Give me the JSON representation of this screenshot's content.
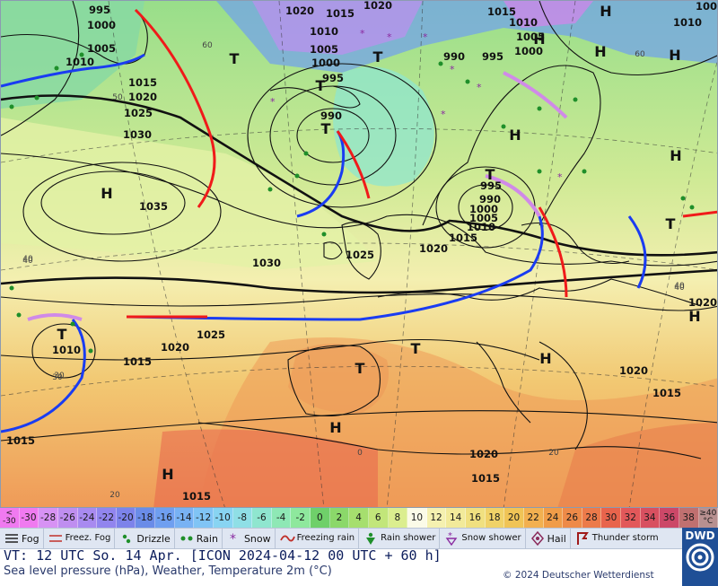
{
  "map": {
    "pressure_labels": [
      {
        "t": "995"
      },
      {
        "t": "1000"
      },
      {
        "t": "1005"
      },
      {
        "t": "1010"
      },
      {
        "t": "1015"
      },
      {
        "t": "1020"
      },
      {
        "t": "1025"
      },
      {
        "t": "1030"
      },
      {
        "t": "1035"
      },
      {
        "t": "1020"
      },
      {
        "t": "1015"
      },
      {
        "t": "1010"
      },
      {
        "t": "1005"
      },
      {
        "t": "1000"
      },
      {
        "t": "995"
      },
      {
        "t": "990"
      },
      {
        "t": "1020"
      },
      {
        "t": "1015"
      },
      {
        "t": "1010"
      },
      {
        "t": "1005"
      },
      {
        "t": "1000"
      },
      {
        "t": "990"
      },
      {
        "t": "995"
      },
      {
        "t": "1015"
      },
      {
        "t": "1010"
      },
      {
        "t": "1005"
      },
      {
        "t": "1000"
      },
      {
        "t": "1015"
      },
      {
        "t": "1010"
      },
      {
        "t": "1005"
      },
      {
        "t": "990"
      },
      {
        "t": "995"
      },
      {
        "t": "1000"
      },
      {
        "t": "1005"
      },
      {
        "t": "1010"
      },
      {
        "t": "1015"
      },
      {
        "t": "1020"
      },
      {
        "t": "1025"
      },
      {
        "t": "1030"
      },
      {
        "t": "1025"
      },
      {
        "t": "1020"
      },
      {
        "t": "1015"
      },
      {
        "t": "1010"
      },
      {
        "t": "1015"
      },
      {
        "t": "1015"
      },
      {
        "t": "1020"
      },
      {
        "t": "1015"
      },
      {
        "t": "1015"
      },
      {
        "t": "1020"
      },
      {
        "t": "1005"
      },
      {
        "t": "1010"
      },
      {
        "t": "1020"
      }
    ],
    "pressure_centers": [
      "H",
      "T",
      "T",
      "T",
      "T",
      "H",
      "H",
      "H",
      "T",
      "T",
      "H",
      "H",
      "T",
      "T",
      "T",
      "H",
      "H",
      "H",
      "H",
      "H"
    ],
    "temp_labels": [
      "60",
      "50",
      "60",
      "40",
      "30",
      "40",
      "0",
      "20",
      "30",
      "40",
      "20",
      "40"
    ]
  },
  "scale": {
    "low_label": "< -30",
    "high_label": "≥40 °C",
    "values": [
      "-30",
      "-28",
      "-26",
      "-24",
      "-22",
      "-20",
      "-18",
      "-16",
      "-14",
      "-12",
      "-10",
      "-8",
      "-6",
      "-4",
      "-2",
      "0",
      "2",
      "4",
      "6",
      "8",
      "10",
      "12",
      "14",
      "16",
      "18",
      "20",
      "22",
      "24",
      "26",
      "28",
      "30",
      "32",
      "34",
      "36",
      "38"
    ],
    "colors": [
      "#f07af0",
      "#d792f4",
      "#bf8ef0",
      "#a88af0",
      "#9185ee",
      "#7c83ea",
      "#6a8ce8",
      "#6f9ff0",
      "#78b2f4",
      "#80c4f5",
      "#88d4f2",
      "#8fdfe6",
      "#8fe6cf",
      "#8ee8b5",
      "#8ee89d",
      "#6fd06a",
      "#8bd86a",
      "#a6df6e",
      "#c2e67a",
      "#dbee8f",
      "#fbfbe8",
      "#f5f1b0",
      "#f2ea9a",
      "#f0e080",
      "#f0d268",
      "#f0c456",
      "#f2b050",
      "#f09c48",
      "#ee8a48",
      "#ec7a4a",
      "#e8644c",
      "#e2585a",
      "#d85060",
      "#cc4868",
      "#c07070"
    ]
  },
  "legend": {
    "fog": "Fog",
    "freez_fog": "Freez. Fog",
    "drizzle": "Drizzle",
    "rain": "Rain",
    "snow": "Snow",
    "freezing_rain": "Freezing rain",
    "rain_shower": "Rain shower",
    "snow_shower": "Snow shower",
    "hail": "Hail",
    "thunderstorm": "Thunder storm"
  },
  "footer": {
    "valid_time": "VT: 12 UTC So.  14 Apr. [ICON 2024-04-12  00 UTC + 60 h]",
    "description": "Sea level pressure (hPa), Weather, Temperature 2m (°C)",
    "copyright": "© 2024 Deutscher Wetterdienst",
    "logo_text": "DWD"
  }
}
